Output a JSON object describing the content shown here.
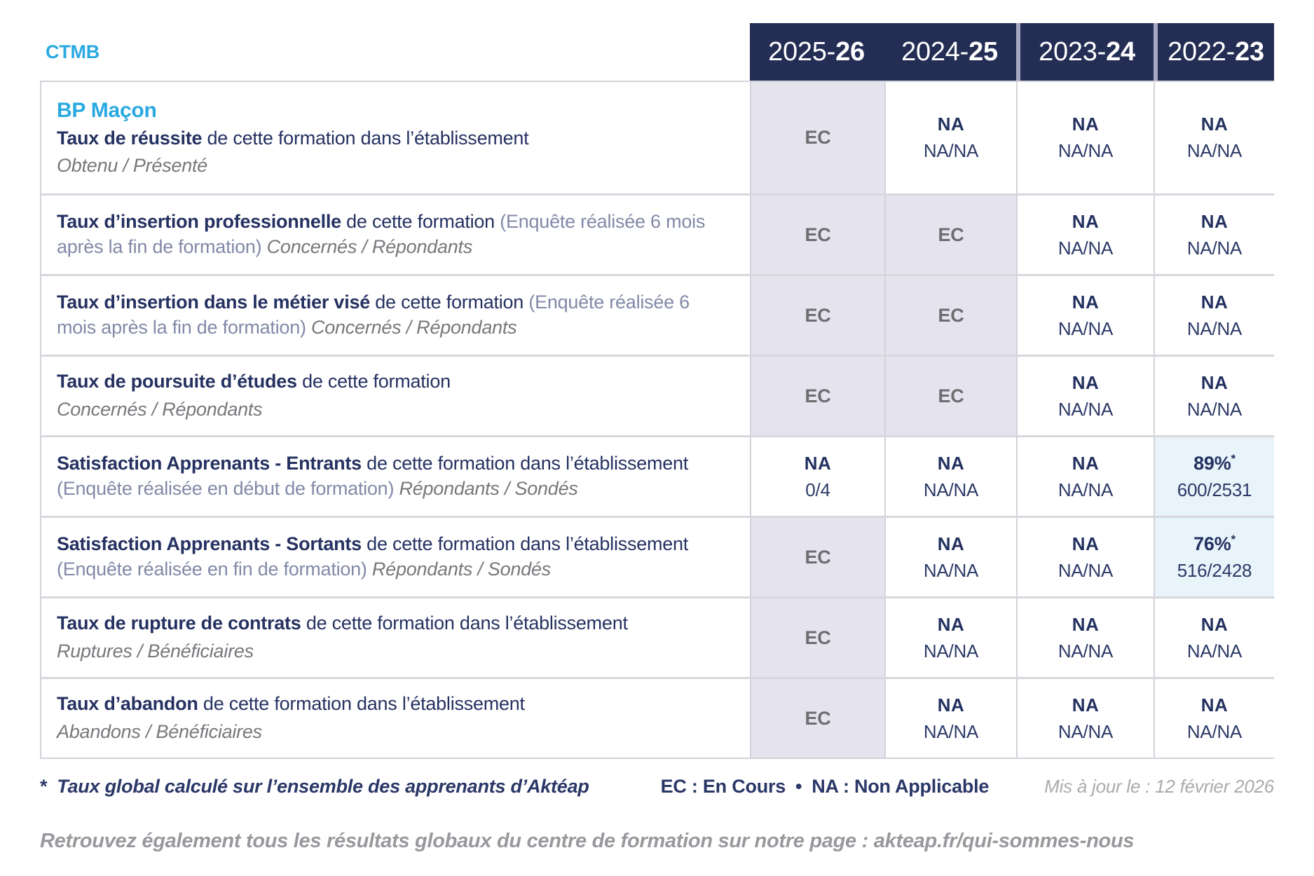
{
  "colors": {
    "navy_header": "#242e55",
    "accent_cyan": "#29a9e1",
    "ec_cell_bg": "#e5e4ee",
    "pct_cell_bg": "#e9f3fa",
    "ec_text": "#6c6d70",
    "navy_text": "#233160"
  },
  "org": "CTMB",
  "program": "BP Maçon",
  "years": [
    {
      "prefix": "2025-",
      "suffix": "26"
    },
    {
      "prefix": "2024-",
      "suffix": "25"
    },
    {
      "prefix": "2023-",
      "suffix": "24"
    },
    {
      "prefix": "2022-",
      "suffix": "23"
    }
  ],
  "rows": [
    {
      "title_bold": "Taux de réussite",
      "title_rest": " de cette formation dans l’établissement",
      "title_paren": "",
      "subtitle": "Obtenu / Présenté",
      "cells": [
        {
          "main": "EC",
          "detail": ""
        },
        {
          "main": "NA",
          "detail": "NA/NA"
        },
        {
          "main": "NA",
          "detail": "NA/NA"
        },
        {
          "main": "NA",
          "detail": "NA/NA"
        }
      ]
    },
    {
      "title_bold": "Taux d’insertion professionnelle",
      "title_rest": " de cette formation ",
      "title_paren": "(Enquête réalisée 6 mois après la fin de formation) ",
      "subtitle": "Concernés / Répondants",
      "cells": [
        {
          "main": "EC",
          "detail": ""
        },
        {
          "main": "EC",
          "detail": ""
        },
        {
          "main": "NA",
          "detail": "NA/NA"
        },
        {
          "main": "NA",
          "detail": "NA/NA"
        }
      ]
    },
    {
      "title_bold": "Taux d’insertion dans le métier visé",
      "title_rest": " de cette formation ",
      "title_paren": "(Enquête réalisée 6 mois après la fin de formation) ",
      "subtitle": "Concernés / Répondants",
      "cells": [
        {
          "main": "EC",
          "detail": ""
        },
        {
          "main": "EC",
          "detail": ""
        },
        {
          "main": "NA",
          "detail": "NA/NA"
        },
        {
          "main": "NA",
          "detail": "NA/NA"
        }
      ]
    },
    {
      "title_bold": "Taux de poursuite d’études",
      "title_rest": " de cette formation",
      "title_paren": "",
      "subtitle": "Concernés / Répondants",
      "cells": [
        {
          "main": "EC",
          "detail": ""
        },
        {
          "main": "EC",
          "detail": ""
        },
        {
          "main": "NA",
          "detail": "NA/NA"
        },
        {
          "main": "NA",
          "detail": "NA/NA"
        }
      ]
    },
    {
      "title_bold": "Satisfaction Apprenants - Entrants",
      "title_rest": " de cette formation dans l’établissement ",
      "title_paren": "(Enquête réalisée en début de formation) ",
      "subtitle": "Répondants / Sondés",
      "cells": [
        {
          "main": "NA",
          "detail": "0/4"
        },
        {
          "main": "NA",
          "detail": "NA/NA"
        },
        {
          "main": "NA",
          "detail": "NA/NA"
        },
        {
          "main": "89%",
          "sup": "*",
          "detail": "600/2531"
        }
      ]
    },
    {
      "title_bold": "Satisfaction Apprenants - Sortants",
      "title_rest": " de cette formation dans l’établissement ",
      "title_paren": "(Enquête réalisée en fin de formation) ",
      "subtitle": "Répondants / Sondés",
      "cells": [
        {
          "main": "EC",
          "detail": ""
        },
        {
          "main": "NA",
          "detail": "NA/NA"
        },
        {
          "main": "NA",
          "detail": "NA/NA"
        },
        {
          "main": "76%",
          "sup": "*",
          "detail": "516/2428"
        }
      ]
    },
    {
      "title_bold": "Taux de rupture de contrats",
      "title_rest": " de cette formation dans l’établissement",
      "title_paren": "",
      "subtitle": "Ruptures / Bénéficiaires",
      "cells": [
        {
          "main": "EC",
          "detail": ""
        },
        {
          "main": "NA",
          "detail": "NA/NA"
        },
        {
          "main": "NA",
          "detail": "NA/NA"
        },
        {
          "main": "NA",
          "detail": "NA/NA"
        }
      ]
    },
    {
      "title_bold": "Taux d’abandon",
      "title_rest": " de cette formation dans l’établissement",
      "title_paren": "",
      "subtitle": "Abandons / Bénéficiaires",
      "cells": [
        {
          "main": "EC",
          "detail": ""
        },
        {
          "main": "NA",
          "detail": "NA/NA"
        },
        {
          "main": "NA",
          "detail": "NA/NA"
        },
        {
          "main": "NA",
          "detail": "NA/NA"
        }
      ]
    }
  ],
  "footer": {
    "star": "*",
    "note": "Taux global calculé sur l’ensemble des apprenants d’Aktéap",
    "legend_ec": "EC : En Cours",
    "legend_sep": "•",
    "legend_na": "NA : Non Applicable",
    "updated": "Mis à jour le : 12 février 2026",
    "bottom_note": "Retrouvez également tous les résultats globaux du centre de formation sur notre page : akteap.fr/qui-sommes-nous"
  }
}
